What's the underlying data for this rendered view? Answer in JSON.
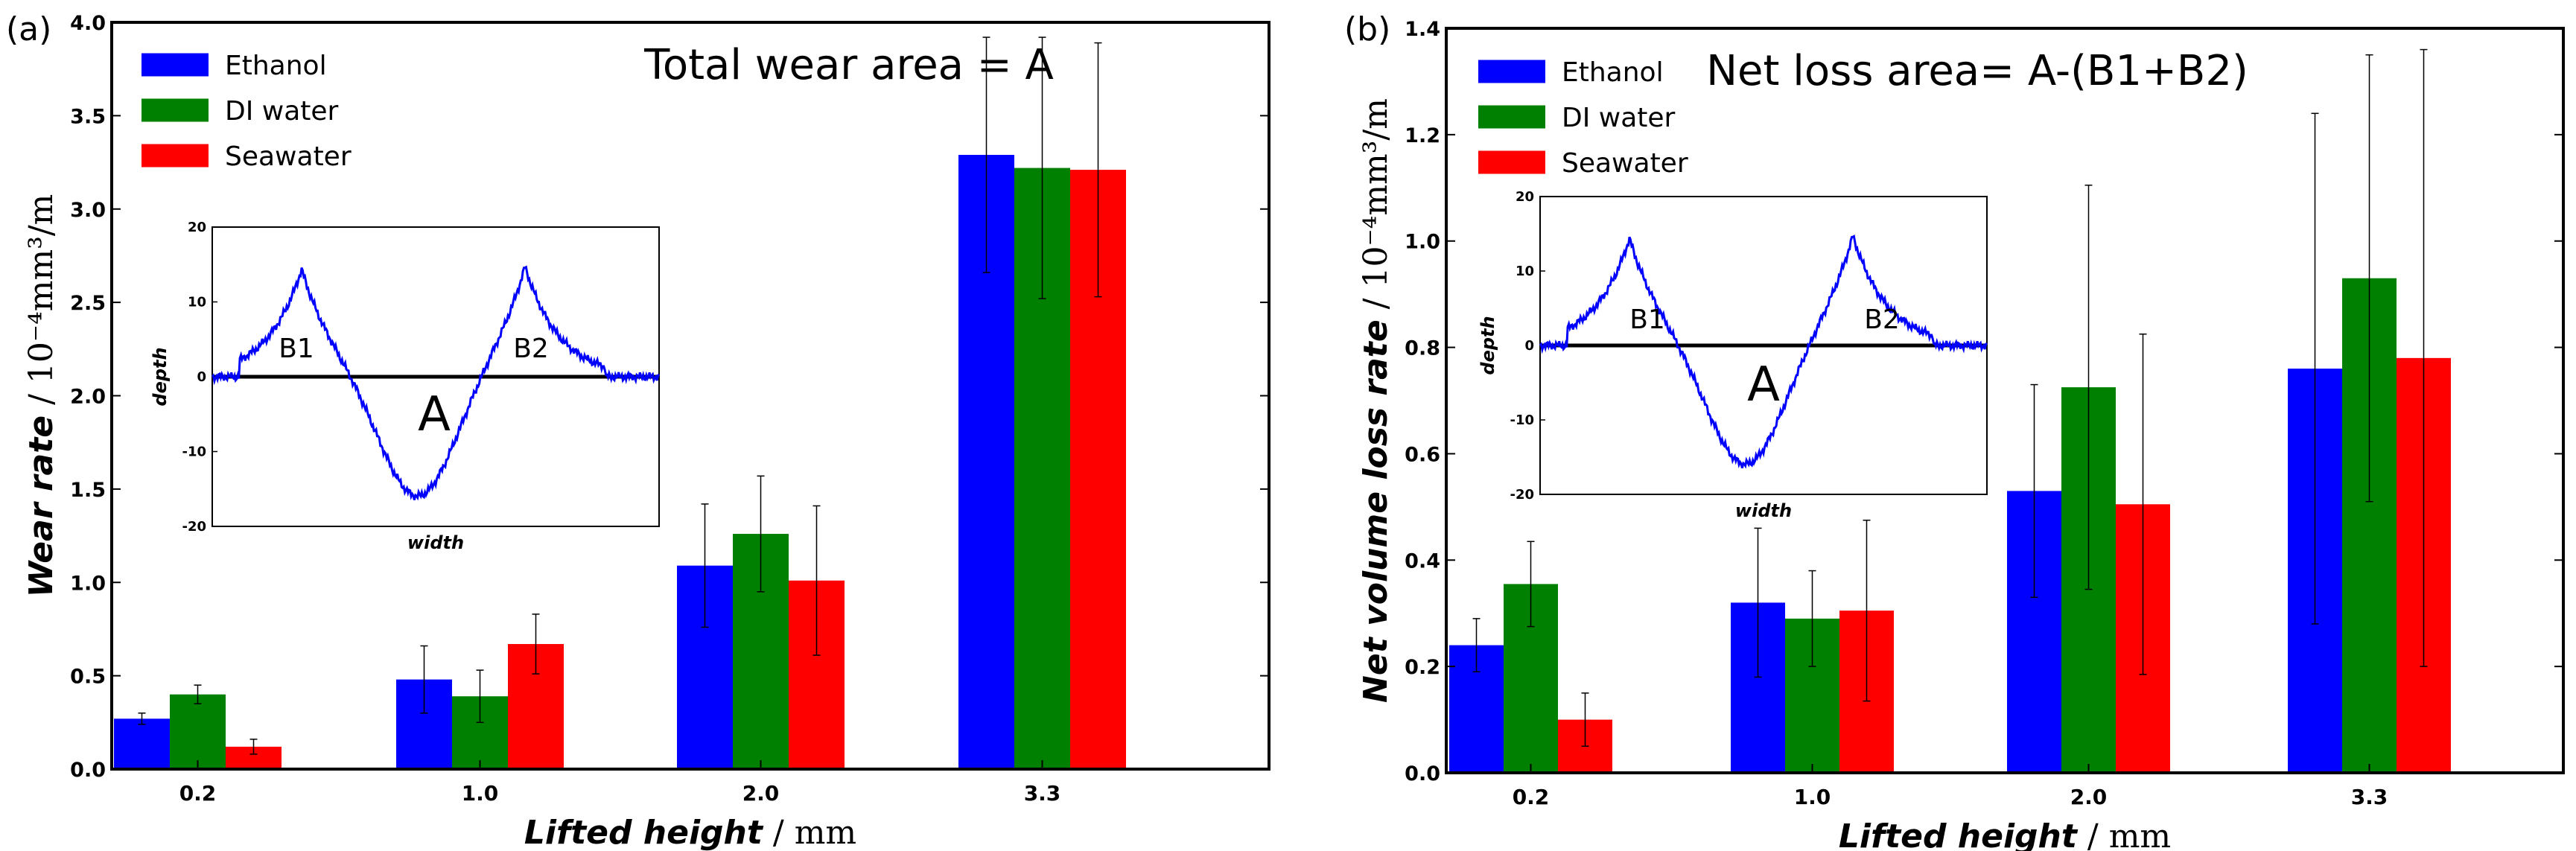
{
  "chart_data": [
    {
      "type": "bar",
      "panel_label": "(a)",
      "title": "",
      "annotation": "Total wear area = A",
      "xlabel": "Lifted height",
      "xlabel_unit": "mm",
      "ylabel": "Wear rate",
      "ylabel_unit": "10⁻⁴mm³/m",
      "categories": [
        "0.2",
        "1.0",
        "2.0",
        "3.3"
      ],
      "ylim": [
        0,
        4.0
      ],
      "yticks": [
        "0.0",
        "0.5",
        "1.0",
        "1.5",
        "2.0",
        "2.5",
        "3.0",
        "3.5",
        "4.0"
      ],
      "legend_position": "top-left",
      "series": [
        {
          "name": "Ethanol",
          "color": "#0000ff",
          "values": [
            0.27,
            0.48,
            1.09,
            3.29
          ],
          "errors": [
            0.03,
            0.18,
            0.33,
            0.63
          ]
        },
        {
          "name": "DI water",
          "color": "#008000",
          "values": [
            0.4,
            0.39,
            1.26,
            3.22
          ],
          "errors": [
            0.05,
            0.14,
            0.31,
            0.7
          ]
        },
        {
          "name": "Seawater",
          "color": "#ff0000",
          "values": [
            0.12,
            0.67,
            1.01,
            3.21
          ],
          "errors": [
            0.04,
            0.16,
            0.4,
            0.68
          ]
        }
      ],
      "inset": {
        "xlabel": "width",
        "ylabel": "depth",
        "yticks": [
          "20",
          "10",
          "0",
          "-10",
          "-20"
        ],
        "ylim": [
          -20,
          20
        ],
        "labels": [
          "B1",
          "B2",
          "A"
        ]
      }
    },
    {
      "type": "bar",
      "panel_label": "(b)",
      "title": "",
      "annotation": "Net loss area= A-(B1+B2)",
      "xlabel": "Lifted height",
      "xlabel_unit": "mm",
      "ylabel": "Net volume loss rate",
      "ylabel_unit": "10⁻⁴mm³/m",
      "categories": [
        "0.2",
        "1.0",
        "2.0",
        "3.3"
      ],
      "ylim": [
        0,
        1.4
      ],
      "yticks": [
        "0.0",
        "0.2",
        "0.4",
        "0.6",
        "0.8",
        "1.0",
        "1.2",
        "1.4"
      ],
      "legend_position": "top-left",
      "series": [
        {
          "name": "Ethanol",
          "color": "#0000ff",
          "values": [
            0.24,
            0.32,
            0.53,
            0.76
          ],
          "errors": [
            0.05,
            0.14,
            0.2,
            0.48
          ]
        },
        {
          "name": "DI water",
          "color": "#008000",
          "values": [
            0.355,
            0.29,
            0.725,
            0.93
          ],
          "errors": [
            0.08,
            0.09,
            0.38,
            0.42
          ]
        },
        {
          "name": "Seawater",
          "color": "#ff0000",
          "values": [
            0.1,
            0.305,
            0.505,
            0.78
          ],
          "errors": [
            0.05,
            0.17,
            0.32,
            0.58
          ]
        }
      ],
      "inset": {
        "xlabel": "width",
        "ylabel": "depth",
        "yticks": [
          "20",
          "10",
          "0",
          "-10",
          "-20"
        ],
        "ylim": [
          -20,
          20
        ],
        "labels": [
          "B1",
          "B2",
          "A"
        ]
      }
    }
  ]
}
